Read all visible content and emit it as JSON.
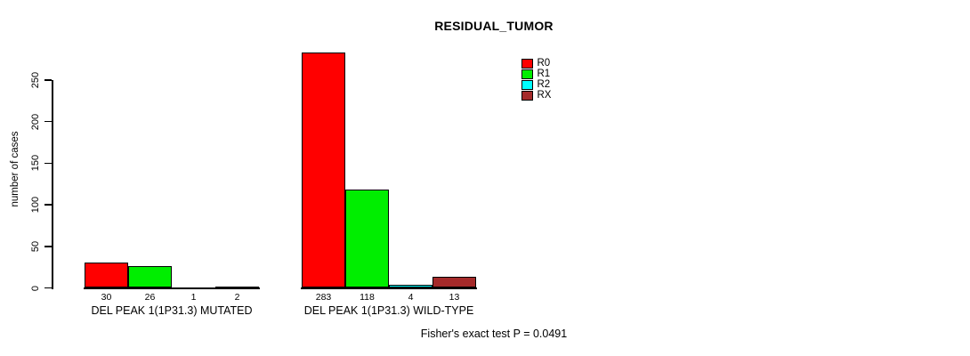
{
  "title": "RESIDUAL_TUMOR",
  "y_axis": {
    "label": "number of cases",
    "ticks": [
      0,
      50,
      100,
      150,
      200,
      250
    ]
  },
  "legend": {
    "items": [
      {
        "label": "R0",
        "color": "#FF0000"
      },
      {
        "label": "R1",
        "color": "#00EE00"
      },
      {
        "label": "R2",
        "color": "#00FFFF"
      },
      {
        "label": "RX",
        "color": "#A52A2A"
      }
    ]
  },
  "footer": "Fisher's exact test P = 0.0491",
  "chart_data": {
    "type": "bar",
    "title": "RESIDUAL_TUMOR",
    "xlabel": "",
    "ylabel": "number of cases",
    "yticks": [
      0,
      50,
      100,
      150,
      200,
      250
    ],
    "ylim": [
      0,
      283
    ],
    "grid": false,
    "legend_position": "top-right",
    "categories": [
      "DEL PEAK 1(1P31.3) MUTATED",
      "DEL PEAK 1(1P31.3) WILD-TYPE"
    ],
    "series": [
      {
        "name": "R0",
        "color": "#FF0000",
        "values": [
          30,
          283
        ]
      },
      {
        "name": "R1",
        "color": "#00EE00",
        "values": [
          26,
          118
        ]
      },
      {
        "name": "R2",
        "color": "#00FFFF",
        "values": [
          1,
          4
        ]
      },
      {
        "name": "RX",
        "color": "#A52A2A",
        "values": [
          2,
          13
        ]
      }
    ],
    "bar_value_labels": [
      [
        "30",
        "26",
        "1",
        "2"
      ],
      [
        "283",
        "118",
        "4",
        "13"
      ]
    ],
    "annotation": "Fisher's exact test P = 0.0491"
  }
}
